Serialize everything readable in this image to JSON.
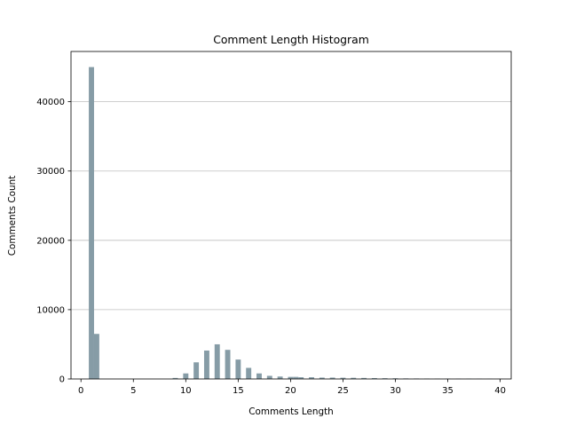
{
  "chart_data": {
    "type": "bar",
    "title": "Comment Length Histogram",
    "xlabel": "Comments Length",
    "ylabel": "Comments Count",
    "xlim": [
      -0.95,
      41.05
    ],
    "ylim": [
      0,
      47250
    ],
    "xticks": [
      0,
      5,
      10,
      15,
      20,
      25,
      30,
      35,
      40
    ],
    "yticks": [
      0,
      10000,
      20000,
      30000,
      40000
    ],
    "grid": "y",
    "bar_width": 0.5,
    "bar_color": "#869ca6",
    "x": [
      1.0,
      1.5,
      9.0,
      10.0,
      11.0,
      12.0,
      13.0,
      14.0,
      15.0,
      16.0,
      17.0,
      18.0,
      19.0,
      20.0,
      20.5,
      21.0,
      22.0,
      23.0,
      24.0,
      25.0,
      26.0,
      27.0,
      28.0,
      29.0,
      30.0,
      31.0,
      32.0,
      33.0,
      34.0,
      35.0,
      36.0,
      37.0,
      38.0,
      39.0,
      40.0
    ],
    "values": [
      45000,
      6500,
      150,
      800,
      2400,
      4100,
      5000,
      4200,
      2800,
      1600,
      800,
      450,
      350,
      300,
      300,
      250,
      250,
      200,
      200,
      180,
      170,
      150,
      130,
      110,
      100,
      80,
      70,
      60,
      50,
      45,
      40,
      35,
      30,
      25,
      20
    ]
  }
}
